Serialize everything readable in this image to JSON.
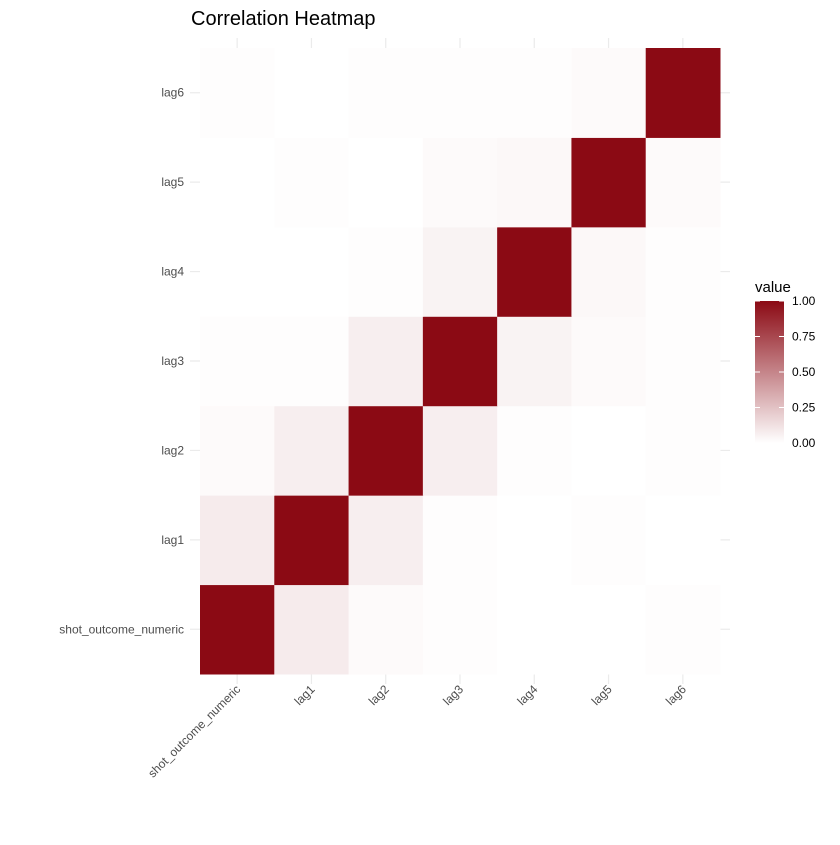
{
  "chart_data": {
    "type": "heatmap",
    "title": "Correlation Heatmap",
    "xlabel": "",
    "ylabel": "",
    "x": [
      "shot_outcome_numeric",
      "lag1",
      "lag2",
      "lag3",
      "lag4",
      "lag5",
      "lag6"
    ],
    "y": [
      "shot_outcome_numeric",
      "lag1",
      "lag2",
      "lag3",
      "lag4",
      "lag5",
      "lag6"
    ],
    "values": [
      [
        1.0,
        0.08,
        0.02,
        0.01,
        0.0,
        0.0,
        0.01
      ],
      [
        0.08,
        1.0,
        0.07,
        0.01,
        0.0,
        0.01,
        0.0
      ],
      [
        0.02,
        0.07,
        1.0,
        0.07,
        0.01,
        0.0,
        0.01
      ],
      [
        0.01,
        0.01,
        0.07,
        1.0,
        0.05,
        0.02,
        0.01
      ],
      [
        0.0,
        0.0,
        0.01,
        0.05,
        1.0,
        0.03,
        0.01
      ],
      [
        0.0,
        0.01,
        0.0,
        0.02,
        0.03,
        1.0,
        0.02
      ],
      [
        0.01,
        0.0,
        0.01,
        0.01,
        0.01,
        0.02,
        1.0
      ]
    ],
    "scale": {
      "min": 0,
      "max": 1,
      "low_color": "#ffffff",
      "high_color": "#8b0a14"
    },
    "legend": {
      "title": "value",
      "position": "right",
      "breaks": [
        0,
        0.25,
        0.5,
        0.75,
        1
      ],
      "labels": [
        "0.00",
        "0.25",
        "0.50",
        "0.75",
        "1.00"
      ]
    },
    "grid": true,
    "x_tick_rotation": -45
  }
}
